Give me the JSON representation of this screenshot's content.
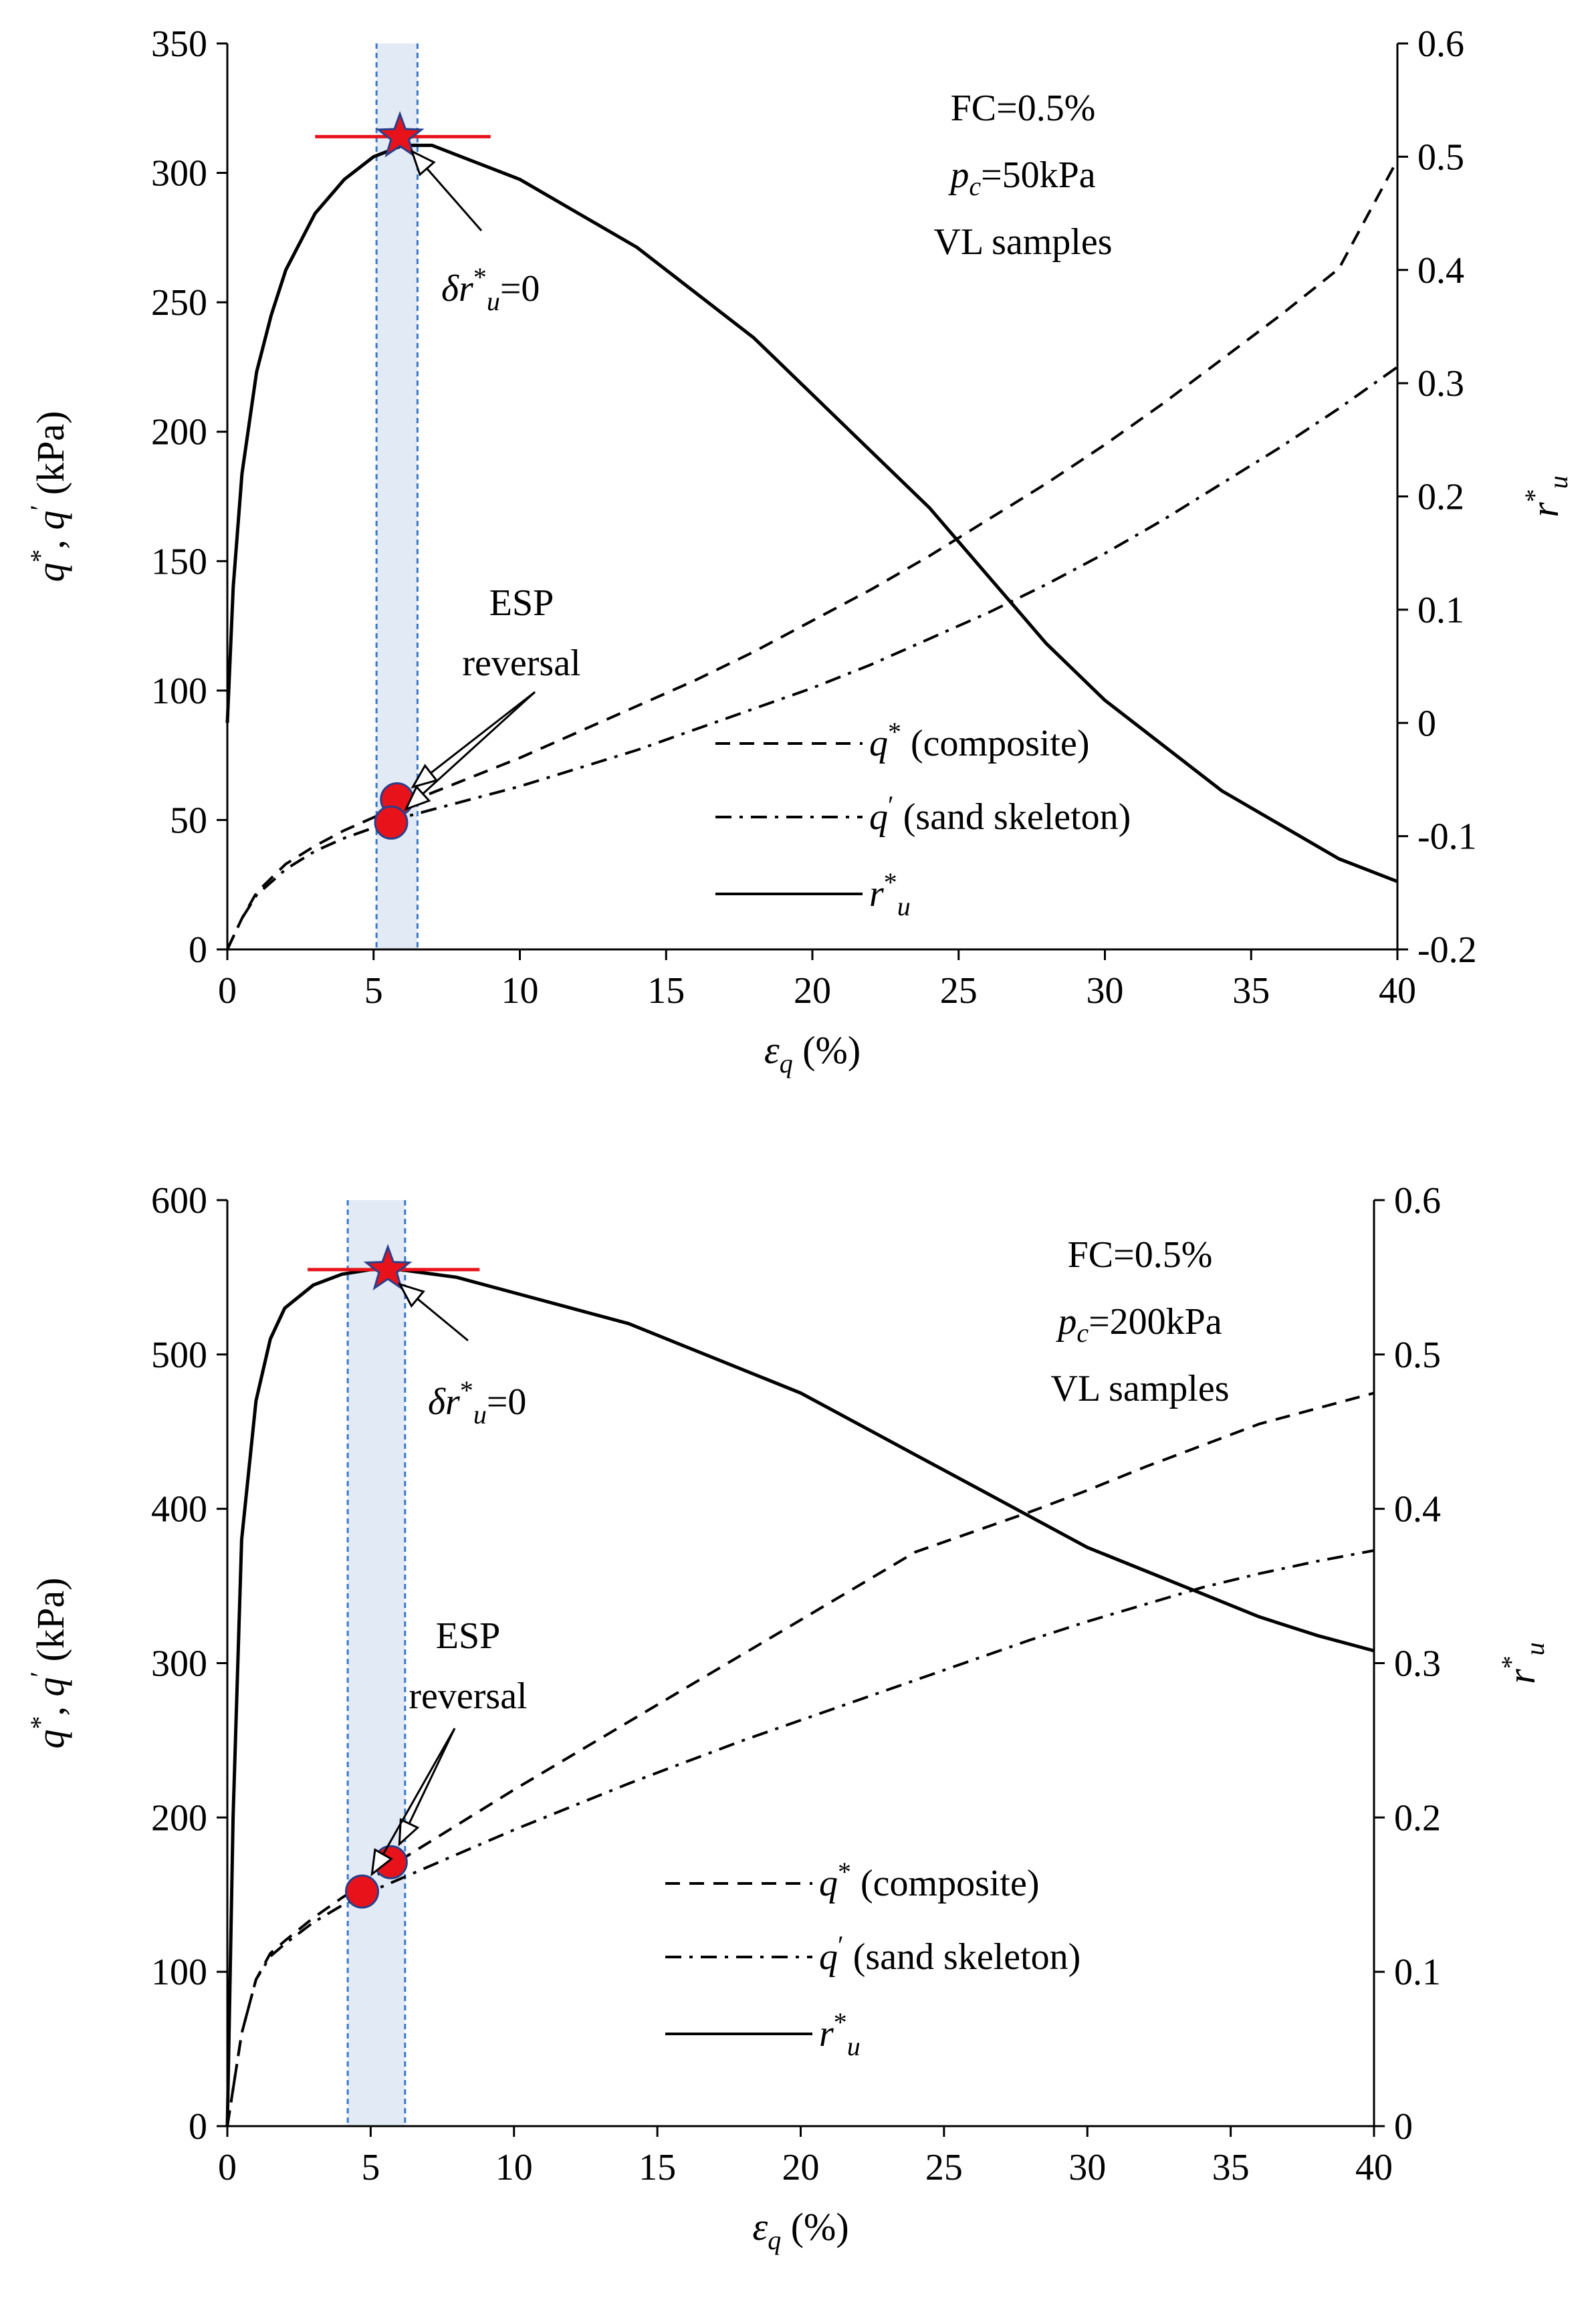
{
  "chart_data": [
    {
      "type": "line",
      "panel": "top",
      "annotation_lines": [
        "FC=0.5%",
        "pc=50kPa",
        "VL samples"
      ],
      "pc_symbol": "p",
      "pc_sub": "c",
      "pc_value": "=50kPa",
      "xlabel": {
        "sym": "ε",
        "sub": "q",
        "rest": " (%)"
      },
      "ylabel_left": {
        "q1": "q",
        "sup1": "*",
        "sep": ", ",
        "q2": "q",
        "sup2": "′",
        "rest": " (kPa)"
      },
      "ylabel_right": {
        "sym": "r",
        "sup": "*",
        "sub": "u"
      },
      "x_ticks": [
        "0",
        "5",
        "10",
        "15",
        "20",
        "25",
        "30",
        "35",
        "40"
      ],
      "y_left_ticks": [
        "0",
        "50",
        "100",
        "150",
        "200",
        "250",
        "300",
        "350"
      ],
      "y_right_ticks": [
        "-0.2",
        "-0.1",
        "0",
        "0.1",
        "0.2",
        "0.3",
        "0.4",
        "0.5",
        "0.6"
      ],
      "xlim": [
        0,
        40
      ],
      "ylim_left": [
        0,
        350
      ],
      "ylim_right": [
        -0.2,
        0.6
      ],
      "shaded_band_x": [
        5.1,
        6.5
      ],
      "peak_line": {
        "x": [
          3.0,
          9.0
        ],
        "y": 314
      },
      "star": {
        "x": 5.9,
        "y": 314
      },
      "delta_label": {
        "pre": "δr",
        "sup": "*",
        "sub": "u",
        "post": "=0"
      },
      "esp_label": [
        "ESP",
        "reversal"
      ],
      "esp_points": [
        {
          "x": 5.8,
          "y": 58
        },
        {
          "x": 5.6,
          "y": 49
        }
      ],
      "legend": [
        {
          "style": "dash",
          "sym": "q",
          "sup": "*",
          "text": "(composite)"
        },
        {
          "style": "dashdot",
          "sym": "q",
          "sup": "′",
          "text": "(sand skeleton)"
        },
        {
          "style": "solid",
          "sym": "r",
          "sup": "*",
          "sub": "u",
          "text": ""
        }
      ],
      "series": [
        {
          "name": "q* (composite)",
          "axis": "left",
          "style": "dash",
          "x": [
            0,
            0.5,
            1,
            2,
            3,
            4,
            5,
            6,
            8,
            10,
            12,
            14,
            16,
            18,
            20,
            22,
            24,
            26,
            28,
            30,
            32,
            34,
            36,
            38,
            40
          ],
          "y": [
            0,
            12,
            22,
            33,
            40,
            46,
            51,
            56,
            65,
            74,
            84,
            94,
            104,
            115,
            127,
            139,
            152,
            166,
            180,
            195,
            211,
            228,
            245,
            263,
            305
          ]
        },
        {
          "name": "q' (sand skeleton)",
          "axis": "left",
          "style": "dashdot",
          "x": [
            0,
            0.5,
            1,
            2,
            3,
            4,
            5,
            6,
            8,
            10,
            12,
            14,
            16,
            18,
            20,
            22,
            24,
            26,
            28,
            30,
            32,
            34,
            36,
            38,
            40
          ],
          "y": [
            0,
            12,
            21,
            31,
            38,
            43,
            47,
            51,
            57,
            63,
            70,
            77,
            85,
            93,
            101,
            110,
            120,
            130,
            141,
            153,
            166,
            180,
            194,
            209,
            225
          ]
        },
        {
          "name": "r*u",
          "axis": "right",
          "style": "solid",
          "x": [
            0,
            0.2,
            0.5,
            1,
            1.5,
            2,
            3,
            4,
            5,
            6,
            7,
            8,
            10,
            12,
            14,
            16,
            18,
            20,
            22,
            24,
            26,
            28,
            30,
            32,
            34,
            36,
            38,
            40
          ],
          "y": [
            0.0,
            0.12,
            0.22,
            0.31,
            0.36,
            0.4,
            0.45,
            0.48,
            0.5,
            0.51,
            0.51,
            0.5,
            0.48,
            0.45,
            0.42,
            0.38,
            0.34,
            0.29,
            0.24,
            0.19,
            0.13,
            0.07,
            0.02,
            -0.02,
            -0.06,
            -0.09,
            -0.12,
            -0.14
          ]
        }
      ]
    },
    {
      "type": "line",
      "panel": "bottom",
      "annotation_lines": [
        "FC=0.5%",
        "pc=200kPa",
        "VL samples"
      ],
      "pc_symbol": "p",
      "pc_sub": "c",
      "pc_value": "=200kPa",
      "xlabel": {
        "sym": "ε",
        "sub": "q",
        "rest": " (%)"
      },
      "ylabel_left": {
        "q1": "q",
        "sup1": "*",
        "sep": ", ",
        "q2": "q",
        "sup2": "′",
        "rest": " (kPa)"
      },
      "ylabel_right": {
        "sym": "r",
        "sup": "*",
        "sub": "u"
      },
      "x_ticks": [
        "0",
        "5",
        "10",
        "15",
        "20",
        "25",
        "30",
        "35",
        "40"
      ],
      "y_left_ticks": [
        "0",
        "100",
        "200",
        "300",
        "400",
        "500",
        "600"
      ],
      "y_right_ticks": [
        "0",
        "0.1",
        "0.2",
        "0.3",
        "0.4",
        "0.5",
        "0.6"
      ],
      "xlim": [
        0,
        40
      ],
      "ylim_left": [
        0,
        600
      ],
      "ylim_right": [
        0,
        0.6
      ],
      "shaded_band_x": [
        4.2,
        6.2
      ],
      "peak_line": {
        "x": [
          2.8,
          8.8
        ],
        "y": 555
      },
      "star": {
        "x": 5.6,
        "y": 555
      },
      "delta_label": {
        "pre": "δr",
        "sup": "*",
        "sub": "u",
        "post": "=0"
      },
      "esp_label": [
        "ESP",
        "reversal"
      ],
      "esp_points": [
        {
          "x": 5.7,
          "y": 171
        },
        {
          "x": 4.7,
          "y": 152
        }
      ],
      "legend": [
        {
          "style": "dash",
          "sym": "q",
          "sup": "*",
          "text": "(composite)"
        },
        {
          "style": "dashdot",
          "sym": "q",
          "sup": "′",
          "text": "(sand skeleton)"
        },
        {
          "style": "solid",
          "sym": "r",
          "sup": "*",
          "sub": "u",
          "text": ""
        }
      ],
      "series": [
        {
          "name": "q* (composite)",
          "axis": "left",
          "style": "dash",
          "x": [
            0,
            0.5,
            1,
            1.5,
            2,
            3,
            4,
            5,
            6,
            8,
            10,
            12,
            14,
            16,
            18,
            20,
            22,
            24,
            26,
            28,
            30,
            32,
            34,
            36,
            38,
            40
          ],
          "y": [
            0,
            60,
            95,
            112,
            120,
            135,
            148,
            160,
            172,
            195,
            218,
            240,
            262,
            284,
            306,
            328,
            350,
            372,
            385,
            398,
            412,
            427,
            441,
            455,
            465,
            475
          ]
        },
        {
          "name": "q' (sand skeleton)",
          "axis": "left",
          "style": "dashdot",
          "x": [
            0,
            0.5,
            1,
            1.5,
            2,
            3,
            4,
            5,
            6,
            8,
            10,
            12,
            14,
            16,
            18,
            20,
            22,
            24,
            26,
            28,
            30,
            32,
            34,
            36,
            38,
            40
          ],
          "y": [
            0,
            60,
            95,
            110,
            118,
            132,
            143,
            152,
            160,
            176,
            192,
            207,
            222,
            236,
            250,
            263,
            276,
            289,
            302,
            315,
            327,
            338,
            349,
            358,
            366,
            373
          ]
        },
        {
          "name": "r*u",
          "axis": "right",
          "style": "solid",
          "x": [
            0,
            0.2,
            0.5,
            1,
            1.5,
            2,
            3,
            4,
            5,
            6,
            8,
            10,
            12,
            14,
            16,
            18,
            20,
            22,
            24,
            26,
            28,
            30,
            32,
            34,
            36,
            38,
            40
          ],
          "y": [
            0.0,
            0.2,
            0.38,
            0.47,
            0.51,
            0.53,
            0.545,
            0.552,
            0.555,
            0.555,
            0.55,
            0.54,
            0.53,
            0.52,
            0.505,
            0.49,
            0.475,
            0.455,
            0.435,
            0.415,
            0.395,
            0.375,
            0.36,
            0.345,
            0.33,
            0.318,
            0.308
          ]
        }
      ]
    }
  ]
}
